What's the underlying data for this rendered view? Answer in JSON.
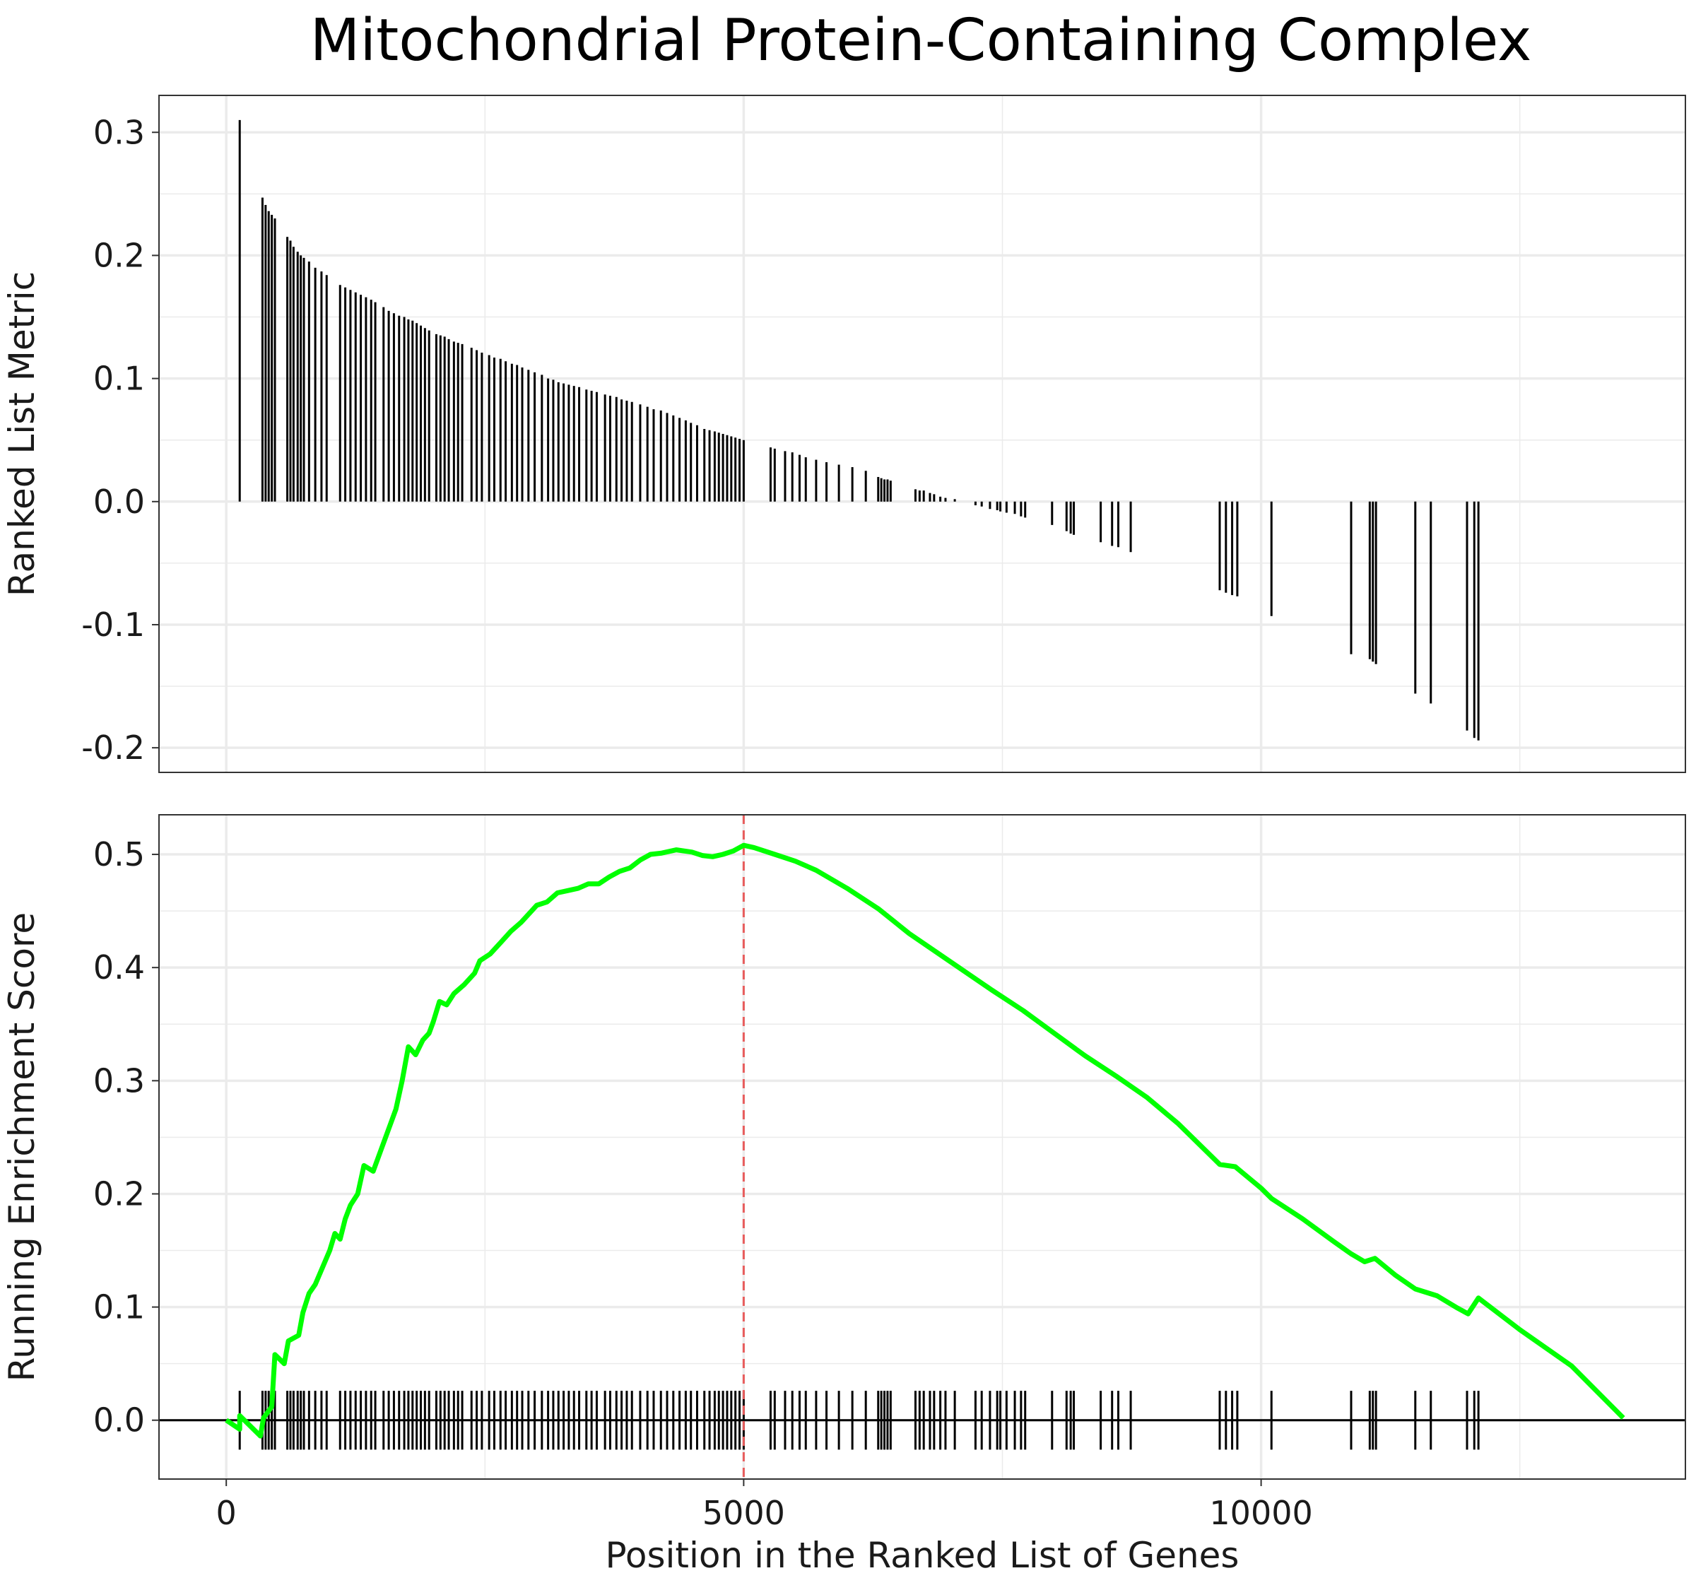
{
  "chart_data": {
    "title": "Mitochondrial Protein-Containing Complex",
    "xlabel": "Position in the Ranked List of Genes",
    "x_ticks": [
      "0",
      "5000",
      "10000"
    ],
    "colors": {
      "enrichment_line": "#00ff00",
      "peak_marker": "#e85c5c",
      "bars": "#000000",
      "panel_border": "#333333",
      "grid": "#ebebeb"
    },
    "panels": [
      {
        "type": "bar",
        "ylabel": "Ranked List Metric",
        "xlim": [
          -650,
          14100
        ],
        "ylim": [
          -0.22,
          0.33
        ],
        "y_ticks": [
          "-0.2",
          "-0.1",
          "0.0",
          "0.1",
          "0.2",
          "0.3"
        ],
        "grid": true,
        "bars": [
          [
            130,
            0.31
          ],
          [
            350,
            0.247
          ],
          [
            380,
            0.241
          ],
          [
            410,
            0.236
          ],
          [
            440,
            0.233
          ],
          [
            470,
            0.23
          ],
          [
            590,
            0.215
          ],
          [
            620,
            0.212
          ],
          [
            650,
            0.207
          ],
          [
            690,
            0.203
          ],
          [
            720,
            0.2
          ],
          [
            750,
            0.198
          ],
          [
            800,
            0.195
          ],
          [
            860,
            0.19
          ],
          [
            920,
            0.187
          ],
          [
            970,
            0.184
          ],
          [
            1100,
            0.176
          ],
          [
            1150,
            0.174
          ],
          [
            1200,
            0.172
          ],
          [
            1250,
            0.17
          ],
          [
            1300,
            0.168
          ],
          [
            1350,
            0.166
          ],
          [
            1400,
            0.164
          ],
          [
            1440,
            0.162
          ],
          [
            1520,
            0.158
          ],
          [
            1570,
            0.155
          ],
          [
            1620,
            0.153
          ],
          [
            1670,
            0.151
          ],
          [
            1720,
            0.15
          ],
          [
            1760,
            0.148
          ],
          [
            1800,
            0.147
          ],
          [
            1840,
            0.145
          ],
          [
            1880,
            0.143
          ],
          [
            1920,
            0.141
          ],
          [
            1960,
            0.139
          ],
          [
            2030,
            0.136
          ],
          [
            2070,
            0.135
          ],
          [
            2110,
            0.134
          ],
          [
            2150,
            0.132
          ],
          [
            2200,
            0.13
          ],
          [
            2240,
            0.129
          ],
          [
            2280,
            0.128
          ],
          [
            2370,
            0.125
          ],
          [
            2420,
            0.123
          ],
          [
            2470,
            0.121
          ],
          [
            2540,
            0.119
          ],
          [
            2590,
            0.117
          ],
          [
            2650,
            0.116
          ],
          [
            2700,
            0.114
          ],
          [
            2760,
            0.112
          ],
          [
            2810,
            0.111
          ],
          [
            2860,
            0.109
          ],
          [
            2920,
            0.107
          ],
          [
            2980,
            0.105
          ],
          [
            3050,
            0.103
          ],
          [
            3110,
            0.1
          ],
          [
            3160,
            0.099
          ],
          [
            3210,
            0.097
          ],
          [
            3260,
            0.096
          ],
          [
            3310,
            0.095
          ],
          [
            3360,
            0.094
          ],
          [
            3410,
            0.093
          ],
          [
            3480,
            0.091
          ],
          [
            3530,
            0.09
          ],
          [
            3580,
            0.089
          ],
          [
            3660,
            0.087
          ],
          [
            3710,
            0.086
          ],
          [
            3770,
            0.085
          ],
          [
            3820,
            0.083
          ],
          [
            3870,
            0.082
          ],
          [
            3920,
            0.081
          ],
          [
            4000,
            0.079
          ],
          [
            4070,
            0.077
          ],
          [
            4130,
            0.075
          ],
          [
            4200,
            0.074
          ],
          [
            4260,
            0.072
          ],
          [
            4320,
            0.07
          ],
          [
            4380,
            0.068
          ],
          [
            4440,
            0.066
          ],
          [
            4490,
            0.064
          ],
          [
            4550,
            0.062
          ],
          [
            4620,
            0.059
          ],
          [
            4670,
            0.058
          ],
          [
            4720,
            0.057
          ],
          [
            4760,
            0.056
          ],
          [
            4800,
            0.055
          ],
          [
            4840,
            0.054
          ],
          [
            4880,
            0.053
          ],
          [
            4920,
            0.052
          ],
          [
            4960,
            0.051
          ],
          [
            5000,
            0.05
          ],
          [
            5260,
            0.044
          ],
          [
            5300,
            0.043
          ],
          [
            5400,
            0.041
          ],
          [
            5470,
            0.04
          ],
          [
            5540,
            0.038
          ],
          [
            5600,
            0.036
          ],
          [
            5700,
            0.034
          ],
          [
            5800,
            0.032
          ],
          [
            5920,
            0.03
          ],
          [
            6050,
            0.028
          ],
          [
            6180,
            0.025
          ],
          [
            6300,
            0.02
          ],
          [
            6330,
            0.019
          ],
          [
            6360,
            0.018
          ],
          [
            6390,
            0.018
          ],
          [
            6420,
            0.017
          ],
          [
            6660,
            0.01
          ],
          [
            6700,
            0.009
          ],
          [
            6740,
            0.009
          ],
          [
            6800,
            0.007
          ],
          [
            6840,
            0.006
          ],
          [
            6900,
            0.004
          ],
          [
            6950,
            0.003
          ],
          [
            7040,
            0.002
          ],
          [
            7240,
            -0.003
          ],
          [
            7300,
            -0.004
          ],
          [
            7380,
            -0.006
          ],
          [
            7450,
            -0.007
          ],
          [
            7480,
            -0.008
          ],
          [
            7540,
            -0.009
          ],
          [
            7620,
            -0.01
          ],
          [
            7680,
            -0.012
          ],
          [
            7720,
            -0.013
          ],
          [
            7980,
            -0.019
          ],
          [
            8120,
            -0.024
          ],
          [
            8160,
            -0.026
          ],
          [
            8190,
            -0.027
          ],
          [
            8450,
            -0.033
          ],
          [
            8560,
            -0.036
          ],
          [
            8620,
            -0.037
          ],
          [
            8740,
            -0.041
          ],
          [
            9600,
            -0.072
          ],
          [
            9660,
            -0.074
          ],
          [
            9720,
            -0.076
          ],
          [
            9770,
            -0.077
          ],
          [
            10100,
            -0.093
          ],
          [
            10870,
            -0.124
          ],
          [
            11050,
            -0.128
          ],
          [
            11080,
            -0.13
          ],
          [
            11110,
            -0.132
          ],
          [
            11490,
            -0.156
          ],
          [
            11640,
            -0.164
          ],
          [
            11990,
            -0.186
          ],
          [
            12060,
            -0.192
          ],
          [
            12100,
            -0.194
          ]
        ]
      },
      {
        "type": "line",
        "ylabel": "Running Enrichment Score",
        "xlim": [
          -650,
          14100
        ],
        "ylim": [
          -0.052,
          0.535
        ],
        "y_ticks": [
          "0.0",
          "0.1",
          "0.2",
          "0.3",
          "0.4",
          "0.5"
        ],
        "grid": true,
        "peak_x": 5000,
        "peak_es": 0.508,
        "enrichment_curve": [
          [
            0,
            0.0
          ],
          [
            130,
            -0.008
          ],
          [
            130,
            0.004
          ],
          [
            330,
            -0.014
          ],
          [
            360,
            0.002
          ],
          [
            440,
            0.012
          ],
          [
            470,
            0.058
          ],
          [
            560,
            0.05
          ],
          [
            600,
            0.07
          ],
          [
            700,
            0.075
          ],
          [
            740,
            0.095
          ],
          [
            800,
            0.112
          ],
          [
            860,
            0.12
          ],
          [
            930,
            0.135
          ],
          [
            1000,
            0.15
          ],
          [
            1050,
            0.165
          ],
          [
            1100,
            0.16
          ],
          [
            1150,
            0.178
          ],
          [
            1200,
            0.19
          ],
          [
            1270,
            0.2
          ],
          [
            1330,
            0.225
          ],
          [
            1420,
            0.22
          ],
          [
            1500,
            0.24
          ],
          [
            1560,
            0.255
          ],
          [
            1640,
            0.275
          ],
          [
            1700,
            0.3
          ],
          [
            1760,
            0.33
          ],
          [
            1830,
            0.323
          ],
          [
            1900,
            0.336
          ],
          [
            1960,
            0.342
          ],
          [
            2000,
            0.352
          ],
          [
            2060,
            0.37
          ],
          [
            2130,
            0.367
          ],
          [
            2200,
            0.377
          ],
          [
            2300,
            0.385
          ],
          [
            2400,
            0.395
          ],
          [
            2450,
            0.406
          ],
          [
            2550,
            0.412
          ],
          [
            2650,
            0.422
          ],
          [
            2750,
            0.432
          ],
          [
            2850,
            0.44
          ],
          [
            2950,
            0.45
          ],
          [
            3000,
            0.455
          ],
          [
            3100,
            0.458
          ],
          [
            3200,
            0.466
          ],
          [
            3300,
            0.468
          ],
          [
            3400,
            0.47
          ],
          [
            3500,
            0.474
          ],
          [
            3600,
            0.474
          ],
          [
            3700,
            0.48
          ],
          [
            3800,
            0.485
          ],
          [
            3900,
            0.488
          ],
          [
            4000,
            0.495
          ],
          [
            4100,
            0.5
          ],
          [
            4200,
            0.501
          ],
          [
            4350,
            0.504
          ],
          [
            4500,
            0.502
          ],
          [
            4600,
            0.499
          ],
          [
            4700,
            0.498
          ],
          [
            4800,
            0.5
          ],
          [
            4900,
            0.503
          ],
          [
            5000,
            0.508
          ],
          [
            5100,
            0.506
          ],
          [
            5300,
            0.5
          ],
          [
            5500,
            0.494
          ],
          [
            5700,
            0.486
          ],
          [
            6000,
            0.47
          ],
          [
            6300,
            0.452
          ],
          [
            6600,
            0.43
          ],
          [
            7000,
            0.405
          ],
          [
            7400,
            0.38
          ],
          [
            7700,
            0.362
          ],
          [
            8000,
            0.342
          ],
          [
            8300,
            0.322
          ],
          [
            8600,
            0.304
          ],
          [
            8900,
            0.285
          ],
          [
            9200,
            0.262
          ],
          [
            9500,
            0.235
          ],
          [
            9600,
            0.226
          ],
          [
            9750,
            0.224
          ],
          [
            10000,
            0.205
          ],
          [
            10100,
            0.196
          ],
          [
            10400,
            0.178
          ],
          [
            10700,
            0.158
          ],
          [
            10870,
            0.147
          ],
          [
            11000,
            0.14
          ],
          [
            11100,
            0.143
          ],
          [
            11300,
            0.128
          ],
          [
            11490,
            0.116
          ],
          [
            11700,
            0.11
          ],
          [
            11900,
            0.099
          ],
          [
            12000,
            0.094
          ],
          [
            12100,
            0.108
          ],
          [
            12500,
            0.08
          ],
          [
            13000,
            0.048
          ],
          [
            13500,
            0.002
          ]
        ],
        "hit_positions": [
          130,
          350,
          380,
          410,
          440,
          470,
          590,
          620,
          650,
          690,
          720,
          750,
          800,
          860,
          920,
          970,
          1100,
          1150,
          1200,
          1250,
          1300,
          1350,
          1400,
          1440,
          1520,
          1570,
          1620,
          1670,
          1720,
          1760,
          1800,
          1840,
          1880,
          1920,
          1960,
          2030,
          2070,
          2110,
          2150,
          2200,
          2240,
          2280,
          2370,
          2420,
          2470,
          2540,
          2590,
          2650,
          2700,
          2760,
          2810,
          2860,
          2920,
          2980,
          3050,
          3110,
          3160,
          3210,
          3260,
          3310,
          3360,
          3410,
          3480,
          3530,
          3580,
          3660,
          3710,
          3770,
          3820,
          3870,
          3920,
          4000,
          4070,
          4130,
          4200,
          4260,
          4320,
          4380,
          4440,
          4490,
          4550,
          4620,
          4670,
          4720,
          4760,
          4800,
          4840,
          4880,
          4920,
          4960,
          5000,
          5260,
          5300,
          5400,
          5470,
          5540,
          5600,
          5700,
          5800,
          5920,
          6050,
          6180,
          6300,
          6330,
          6360,
          6390,
          6420,
          6660,
          6700,
          6740,
          6800,
          6840,
          6900,
          6950,
          7040,
          7240,
          7300,
          7380,
          7450,
          7480,
          7540,
          7620,
          7680,
          7720,
          7980,
          8120,
          8160,
          8190,
          8450,
          8560,
          8620,
          8740,
          9600,
          9660,
          9720,
          9770,
          10100,
          10870,
          11050,
          11080,
          11110,
          11490,
          11640,
          11990,
          12060,
          12100
        ],
        "hit_range": [
          -0.026,
          0.026
        ]
      }
    ]
  }
}
